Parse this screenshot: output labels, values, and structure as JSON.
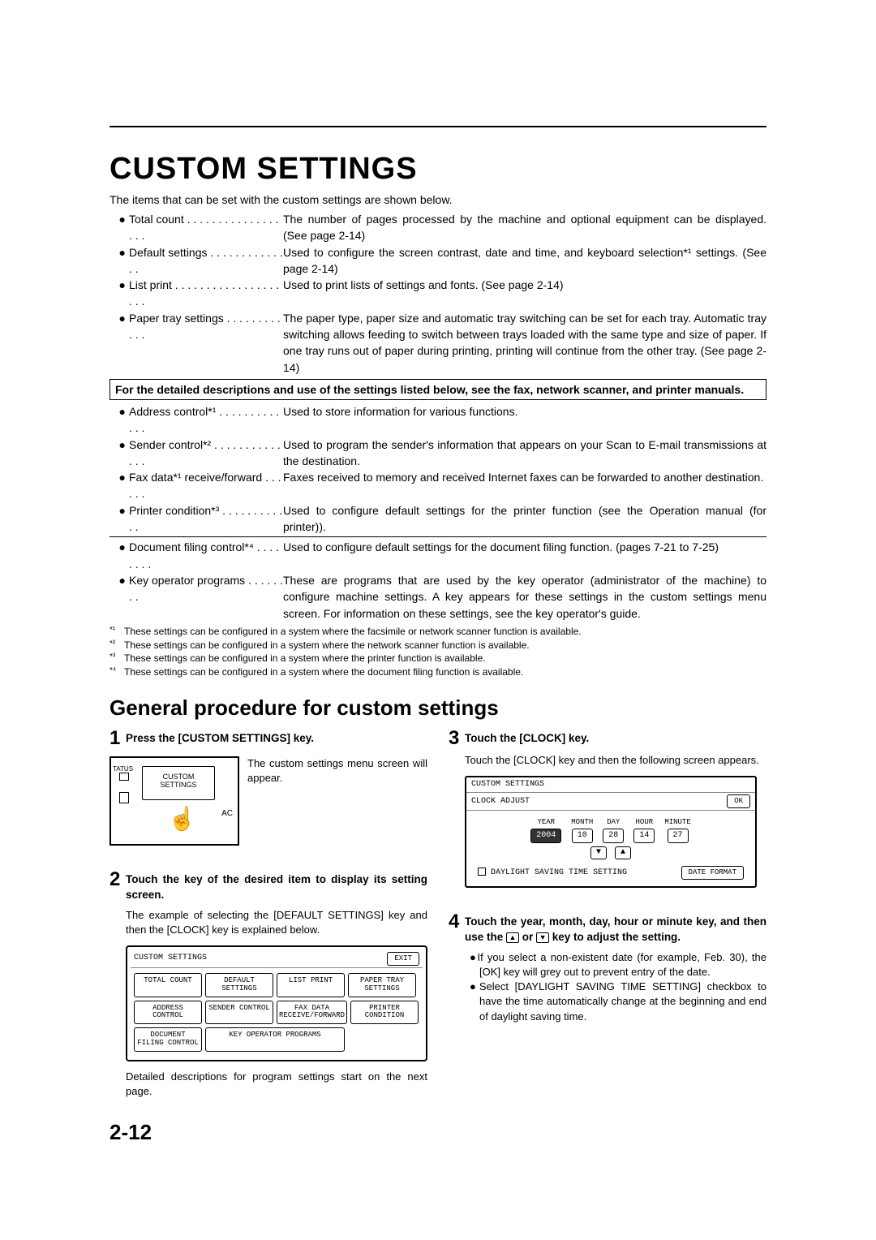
{
  "title": "CUSTOM SETTINGS",
  "intro": "The items that can be set with the custom settings are shown below.",
  "bullets": [
    {
      "label": "Total count . . . . . . . . . . . . . . . . . .",
      "desc": "The number of pages processed by the machine and optional equipment can be displayed. (See page 2-14)"
    },
    {
      "label": "Default settings  . . . . . . . . . . . . . .",
      "desc": "Used to configure the screen contrast, date and time, and keyboard selection*¹ settings. (See page 2-14)"
    },
    {
      "label": "List print . . . . . . . . . . . . . . . . . . . .",
      "desc": "Used to print lists of settings and fonts. (See page 2-14)"
    },
    {
      "label": "Paper tray settings . . . . . . . . . . . .",
      "desc": "The paper type, paper size and automatic tray switching can be set for each tray. Automatic tray switching allows feeding to switch between trays loaded with the same type and size of paper. If one tray runs out of paper during printing, printing will continue from the other tray. (See page 2-14)"
    }
  ],
  "box_note": "For the detailed descriptions and use of the settings listed below, see the fax, network scanner, and printer manuals.",
  "bullets2": [
    {
      "label": "Address control*¹ . . . . . . . . . . . . .",
      "desc": "Used to store information for various functions."
    },
    {
      "label": "Sender control*² . . . . . . . . . . . . . .",
      "desc": "Used to program the sender's information that appears on your Scan to E-mail transmissions at the destination."
    },
    {
      "label": "Fax data*¹ receive/forward . . . . . .",
      "desc": "Faxes received to memory and received Internet faxes can be forwarded to another destination."
    },
    {
      "label": "Printer condition*³  . . . . . . . . . . . .",
      "desc": "Used to configure default settings for the printer function (see the Operation manual (for printer))."
    }
  ],
  "bullets3": [
    {
      "label": "Document filing control*⁴ . . . . . . . .",
      "desc": "Used to configure default settings for the document filing function. (pages 7-21 to 7-25)"
    },
    {
      "label": "Key operator programs  . . . . . . . .",
      "desc": "These are programs that are used by the key operator (administrator of the machine) to configure machine settings. A key appears for these settings in the custom settings menu screen. For information on these settings, see the key operator's guide."
    }
  ],
  "footnotes": [
    {
      "mark": "*¹",
      "text": "These settings can be configured in a system where the facsimile or network scanner function is available."
    },
    {
      "mark": "*²",
      "text": "These settings can be configured in a system where the network scanner function is available."
    },
    {
      "mark": "*³",
      "text": "These settings can be configured in a system where the printer function is available."
    },
    {
      "mark": "*⁴",
      "text": "These settings can be configured in a system where the document filing function is available."
    }
  ],
  "section_title": "General procedure for custom settings",
  "step1": {
    "num": "1",
    "title": "Press the [CUSTOM SETTINGS] key.",
    "side_text": "The custom settings menu screen will appear.",
    "device_label": "CUSTOM\nSETTINGS",
    "device_status": "TATUS",
    "device_ac": "AC"
  },
  "step2": {
    "num": "2",
    "title": "Touch the key of the desired item to display its setting screen.",
    "body": "The example of selecting the [DEFAULT SETTINGS] key and then the [CLOCK] key is explained below.",
    "panel_title": "CUSTOM SETTINGS",
    "panel_exit": "EXIT",
    "buttons": [
      "TOTAL COUNT",
      "DEFAULT SETTINGS",
      "LIST PRINT",
      "PAPER TRAY SETTINGS",
      "ADDRESS CONTROL",
      "SENDER CONTROL",
      "FAX DATA RECEIVE/FORWARD",
      "PRINTER CONDITION",
      "DOCUMENT FILING CONTROL",
      "KEY OPERATOR PROGRAMS"
    ],
    "foot": "Detailed descriptions for program settings start on the next page."
  },
  "step3": {
    "num": "3",
    "title": "Touch the [CLOCK] key.",
    "body": "Touch the [CLOCK] key and then the following screen appears.",
    "panel_title": "CUSTOM SETTINGS",
    "panel_sub": "CLOCK ADJUST",
    "panel_ok": "OK",
    "labels": [
      "YEAR",
      "MONTH",
      "DAY",
      "HOUR",
      "MINUTE"
    ],
    "values": [
      "2004",
      "10",
      "28",
      "14",
      "27"
    ],
    "dst": "DAYLIGHT SAVING TIME SETTING",
    "date_format": "DATE FORMAT"
  },
  "step4": {
    "num": "4",
    "title_a": "Touch the year, month, day, hour or minute key, and then use the ",
    "title_b": " or ",
    "title_c": " key to adjust the setting.",
    "b1": "If you select a non-existent date (for example, Feb. 30), the [OK] key will grey out to prevent entry of the date.",
    "b2": "Select [DAYLIGHT SAVING TIME SETTING] checkbox to have the time automatically change at the beginning and end of daylight saving time."
  },
  "page_num": "2-12"
}
